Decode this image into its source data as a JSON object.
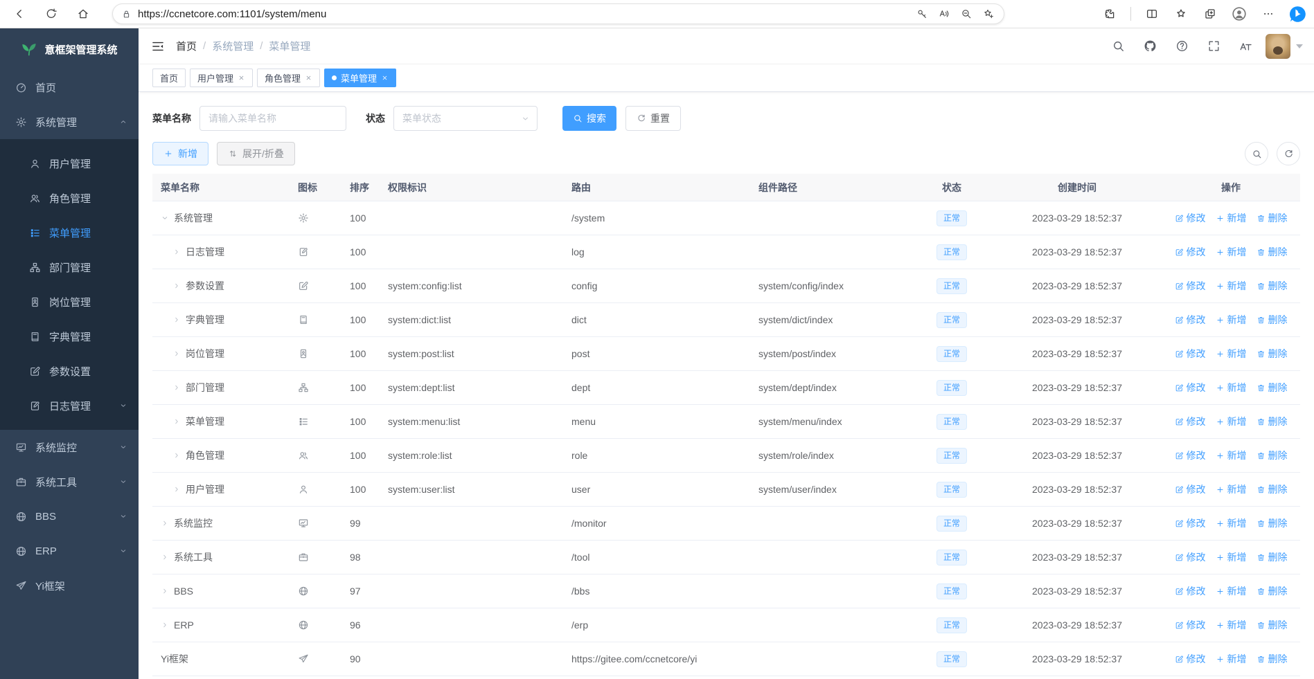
{
  "browser": {
    "url": "https://ccnetcore.com:1101/system/menu",
    "nav_icons": [
      "back-icon",
      "reload-icon",
      "home-icon"
    ],
    "address_icons": [
      "key-icon",
      "read-aloud-icon",
      "zoom-out-icon",
      "favorite-add-icon"
    ],
    "right_icons": [
      "extensions-icon",
      "split-screen-icon",
      "favorites-icon",
      "collections-icon",
      "profile-icon",
      "more-icon",
      "bing-icon"
    ]
  },
  "sidebar": {
    "title": "意框架管理系统",
    "items": [
      {
        "label": "首页",
        "icon": "dashboard-icon"
      },
      {
        "label": "系统管理",
        "icon": "gear-icon",
        "expanded": true,
        "children": [
          {
            "label": "用户管理",
            "icon": "user-icon"
          },
          {
            "label": "角色管理",
            "icon": "users-icon"
          },
          {
            "label": "菜单管理",
            "icon": "menu-list-icon",
            "active": true
          },
          {
            "label": "部门管理",
            "icon": "org-tree-icon"
          },
          {
            "label": "岗位管理",
            "icon": "badge-icon"
          },
          {
            "label": "字典管理",
            "icon": "dict-icon"
          },
          {
            "label": "参数设置",
            "icon": "edit-square-icon"
          },
          {
            "label": "日志管理",
            "icon": "log-icon",
            "has_children": true
          }
        ]
      },
      {
        "label": "系统监控",
        "icon": "monitor-icon",
        "has_children": true
      },
      {
        "label": "系统工具",
        "icon": "briefcase-icon",
        "has_children": true
      },
      {
        "label": "BBS",
        "icon": "globe-icon",
        "has_children": true
      },
      {
        "label": "ERP",
        "icon": "globe-icon",
        "has_children": true
      },
      {
        "label": "Yi框架",
        "icon": "plane-icon"
      }
    ]
  },
  "header": {
    "breadcrumb": [
      "首页",
      "系统管理",
      "菜单管理"
    ],
    "separator": "/",
    "icons": [
      "search-icon",
      "github-icon",
      "question-icon",
      "fullscreen-icon",
      "font-size-icon"
    ]
  },
  "tabs": [
    {
      "label": "首页",
      "closable": false,
      "active": false
    },
    {
      "label": "用户管理",
      "closable": true,
      "active": false
    },
    {
      "label": "角色管理",
      "closable": true,
      "active": false
    },
    {
      "label": "菜单管理",
      "closable": true,
      "active": true
    }
  ],
  "filters": {
    "name_label": "菜单名称",
    "name_placeholder": "请输入菜单名称",
    "status_label": "状态",
    "status_placeholder": "菜单状态",
    "search_label": "搜索",
    "reset_label": "重置"
  },
  "toolbar": {
    "add_label": "新增",
    "expand_label": "展开/折叠",
    "right_icons": [
      "search-icon",
      "refresh-icon"
    ]
  },
  "table": {
    "columns": [
      "菜单名称",
      "图标",
      "排序",
      "权限标识",
      "路由",
      "组件路径",
      "状态",
      "创建时间",
      "操作"
    ],
    "actions": [
      {
        "label": "修改",
        "icon": "edit-square-icon",
        "name": "edit-action"
      },
      {
        "label": "新增",
        "icon": "plus-icon",
        "name": "add-action"
      },
      {
        "label": "删除",
        "icon": "trash-icon",
        "name": "delete-action"
      }
    ],
    "rows": [
      {
        "name": "系统管理",
        "icon": "gear-icon",
        "level": 0,
        "expand": "open",
        "order": "100",
        "perm": "",
        "route": "/system",
        "component": "",
        "status": "正常",
        "created": "2023-03-29 18:52:37"
      },
      {
        "name": "日志管理",
        "icon": "log-icon",
        "level": 1,
        "expand": "closed",
        "order": "100",
        "perm": "",
        "route": "log",
        "component": "",
        "status": "正常",
        "created": "2023-03-29 18:52:37"
      },
      {
        "name": "参数设置",
        "icon": "edit-square-icon",
        "level": 1,
        "expand": "closed",
        "order": "100",
        "perm": "system:config:list",
        "route": "config",
        "component": "system/config/index",
        "status": "正常",
        "created": "2023-03-29 18:52:37"
      },
      {
        "name": "字典管理",
        "icon": "dict-icon",
        "level": 1,
        "expand": "closed",
        "order": "100",
        "perm": "system:dict:list",
        "route": "dict",
        "component": "system/dict/index",
        "status": "正常",
        "created": "2023-03-29 18:52:37"
      },
      {
        "name": "岗位管理",
        "icon": "badge-icon",
        "level": 1,
        "expand": "closed",
        "order": "100",
        "perm": "system:post:list",
        "route": "post",
        "component": "system/post/index",
        "status": "正常",
        "created": "2023-03-29 18:52:37"
      },
      {
        "name": "部门管理",
        "icon": "org-tree-icon",
        "level": 1,
        "expand": "closed",
        "order": "100",
        "perm": "system:dept:list",
        "route": "dept",
        "component": "system/dept/index",
        "status": "正常",
        "created": "2023-03-29 18:52:37"
      },
      {
        "name": "菜单管理",
        "icon": "menu-list-icon",
        "level": 1,
        "expand": "closed",
        "order": "100",
        "perm": "system:menu:list",
        "route": "menu",
        "component": "system/menu/index",
        "status": "正常",
        "created": "2023-03-29 18:52:37"
      },
      {
        "name": "角色管理",
        "icon": "users-icon",
        "level": 1,
        "expand": "closed",
        "order": "100",
        "perm": "system:role:list",
        "route": "role",
        "component": "system/role/index",
        "status": "正常",
        "created": "2023-03-29 18:52:37"
      },
      {
        "name": "用户管理",
        "icon": "user-icon",
        "level": 1,
        "expand": "closed",
        "order": "100",
        "perm": "system:user:list",
        "route": "user",
        "component": "system/user/index",
        "status": "正常",
        "created": "2023-03-29 18:52:37"
      },
      {
        "name": "系统监控",
        "icon": "monitor-icon",
        "level": 0,
        "expand": "closed",
        "order": "99",
        "perm": "",
        "route": "/monitor",
        "component": "",
        "status": "正常",
        "created": "2023-03-29 18:52:37"
      },
      {
        "name": "系统工具",
        "icon": "briefcase-icon",
        "level": 0,
        "expand": "closed",
        "order": "98",
        "perm": "",
        "route": "/tool",
        "component": "",
        "status": "正常",
        "created": "2023-03-29 18:52:37"
      },
      {
        "name": "BBS",
        "icon": "globe-icon",
        "level": 0,
        "expand": "closed",
        "order": "97",
        "perm": "",
        "route": "/bbs",
        "component": "",
        "status": "正常",
        "created": "2023-03-29 18:52:37"
      },
      {
        "name": "ERP",
        "icon": "globe-icon",
        "level": 0,
        "expand": "closed",
        "order": "96",
        "perm": "",
        "route": "/erp",
        "component": "",
        "status": "正常",
        "created": "2023-03-29 18:52:37"
      },
      {
        "name": "Yi框架",
        "icon": "plane-icon",
        "level": 0,
        "expand": "none",
        "order": "90",
        "perm": "",
        "route": "https://gitee.com/ccnetcore/yi",
        "component": "",
        "status": "正常",
        "created": "2023-03-29 18:52:37"
      }
    ]
  },
  "colors": {
    "primary": "#409eff",
    "sidebar_bg": "#304156",
    "submenu_bg": "#1f2d3d",
    "status_tag_bg": "#ecf5ff"
  }
}
